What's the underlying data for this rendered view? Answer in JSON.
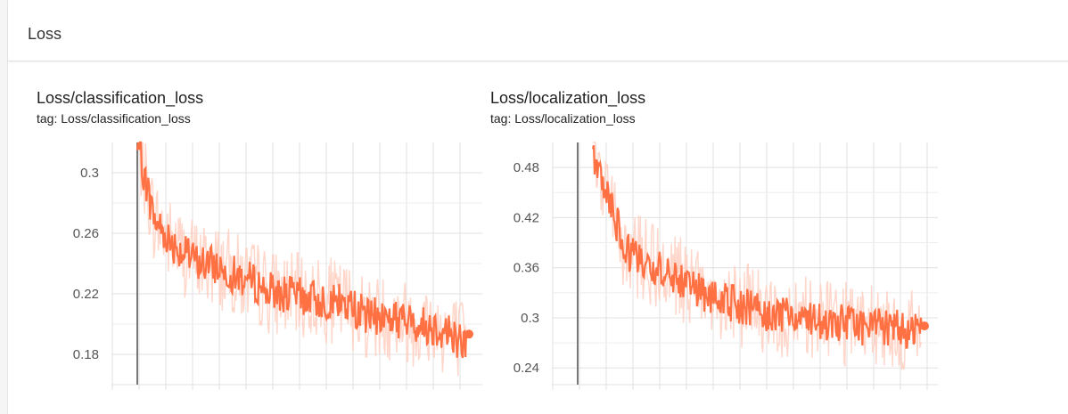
{
  "header": {
    "title": "Loss"
  },
  "colors": {
    "line": "#ff7043",
    "raw": "#ffccbc",
    "grid": "#e0e0e0",
    "axis": "#9e9e9e"
  },
  "chart_data": [
    {
      "type": "line",
      "title": "Loss/classification_loss",
      "tag": "tag: Loss/classification_loss",
      "ylim": [
        0.16,
        0.32
      ],
      "yticks": [
        0.18,
        0.22,
        0.26,
        0.3
      ],
      "ytick_labels": [
        "0.18",
        "0.22",
        "0.26",
        "0.3"
      ],
      "grid": true,
      "series": [
        {
          "role": "smoothed",
          "x": [
            0,
            0.05,
            0.1,
            0.15,
            0.2,
            0.25,
            0.3,
            0.35,
            0.4,
            0.45,
            0.5,
            0.55,
            0.6,
            0.65,
            0.7,
            0.75,
            0.8,
            0.85,
            0.9,
            0.95,
            1.0
          ],
          "values": [
            0.32,
            0.27,
            0.255,
            0.245,
            0.24,
            0.238,
            0.232,
            0.228,
            0.222,
            0.22,
            0.218,
            0.216,
            0.215,
            0.212,
            0.205,
            0.205,
            0.203,
            0.2,
            0.198,
            0.195,
            0.185
          ]
        }
      ]
    },
    {
      "type": "line",
      "title": "Loss/localization_loss",
      "tag": "tag: Loss/localization_loss",
      "ylim": [
        0.22,
        0.51
      ],
      "yticks": [
        0.24,
        0.3,
        0.36,
        0.42,
        0.48
      ],
      "ytick_labels": [
        "0.24",
        "0.3",
        "0.36",
        "0.42",
        "0.48"
      ],
      "grid": true,
      "series": [
        {
          "role": "smoothed",
          "x": [
            0,
            0.05,
            0.1,
            0.15,
            0.2,
            0.25,
            0.3,
            0.35,
            0.4,
            0.45,
            0.5,
            0.55,
            0.6,
            0.65,
            0.7,
            0.75,
            0.8,
            0.85,
            0.9,
            0.95,
            1.0
          ],
          "values": [
            0.5,
            0.44,
            0.38,
            0.37,
            0.36,
            0.35,
            0.335,
            0.325,
            0.32,
            0.315,
            0.31,
            0.305,
            0.3,
            0.298,
            0.295,
            0.295,
            0.29,
            0.29,
            0.288,
            0.286,
            0.283
          ]
        }
      ]
    }
  ]
}
